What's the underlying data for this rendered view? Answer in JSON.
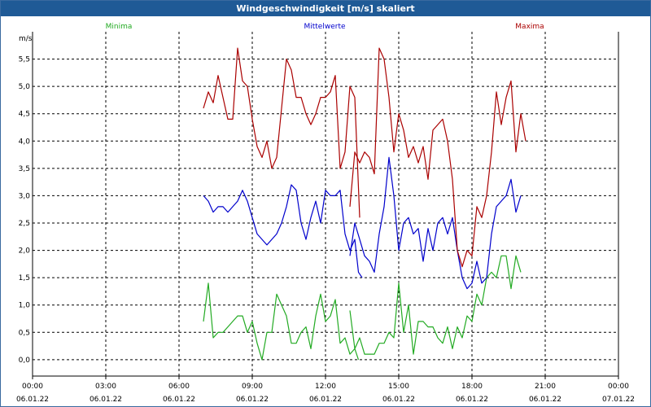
{
  "chart_data": {
    "type": "line",
    "title": "Windgeschwindigkeit [m/s] skaliert",
    "ylabel": "m/s",
    "xlabel": "",
    "ylim": [
      -0.3,
      6.0
    ],
    "xlim": [
      0,
      24
    ],
    "grid": true,
    "y_ticks": [
      "0,0",
      "0,5",
      "1,0",
      "1,5",
      "2,0",
      "2,5",
      "3,0",
      "3,5",
      "4,0",
      "4,5",
      "5,0",
      "5,5"
    ],
    "y_tick_values": [
      0,
      0.5,
      1.0,
      1.5,
      2.0,
      2.5,
      3.0,
      3.5,
      4.0,
      4.5,
      5.0,
      5.5
    ],
    "x_ticks": [
      {
        "time": "00:00",
        "date": "06.01.22",
        "hour": 0
      },
      {
        "time": "03:00",
        "date": "06.01.22",
        "hour": 3
      },
      {
        "time": "06:00",
        "date": "06.01.22",
        "hour": 6
      },
      {
        "time": "09:00",
        "date": "06.01.22",
        "hour": 9
      },
      {
        "time": "12:00",
        "date": "06.01.22",
        "hour": 12
      },
      {
        "time": "15:00",
        "date": "06.01.22",
        "hour": 15
      },
      {
        "time": "18:00",
        "date": "06.01.22",
        "hour": 18
      },
      {
        "time": "21:00",
        "date": "06.01.22",
        "hour": 21
      },
      {
        "time": "00:00",
        "date": "07.01.22",
        "hour": 24
      }
    ],
    "series": [
      {
        "name": "Minima",
        "color": "#22aa22",
        "legend_position": "top-left",
        "segments": [
          [
            [
              7.0,
              0.7
            ],
            [
              7.2,
              1.4
            ],
            [
              7.4,
              0.4
            ],
            [
              7.6,
              0.5
            ],
            [
              7.8,
              0.5
            ],
            [
              8.0,
              0.6
            ],
            [
              8.2,
              0.7
            ],
            [
              8.4,
              0.8
            ],
            [
              8.6,
              0.8
            ],
            [
              8.8,
              0.5
            ],
            [
              9.0,
              0.7
            ],
            [
              9.2,
              0.3
            ],
            [
              9.4,
              0.0
            ],
            [
              9.6,
              0.5
            ],
            [
              9.8,
              0.5
            ],
            [
              10.0,
              1.2
            ],
            [
              10.2,
              1.0
            ],
            [
              10.4,
              0.8
            ],
            [
              10.6,
              0.3
            ],
            [
              10.8,
              0.3
            ],
            [
              11.0,
              0.5
            ],
            [
              11.2,
              0.6
            ],
            [
              11.4,
              0.2
            ],
            [
              11.6,
              0.8
            ],
            [
              11.8,
              1.2
            ],
            [
              12.0,
              0.7
            ],
            [
              12.2,
              0.8
            ],
            [
              12.4,
              1.1
            ],
            [
              12.6,
              0.3
            ],
            [
              12.8,
              0.4
            ],
            [
              13.0,
              0.1
            ],
            [
              13.2,
              0.2
            ],
            [
              13.35,
              0.0
            ]
          ],
          [
            [
              13.0,
              0.9
            ],
            [
              13.2,
              0.2
            ],
            [
              13.4,
              0.4
            ],
            [
              13.6,
              0.1
            ],
            [
              13.8,
              0.1
            ],
            [
              14.0,
              0.1
            ],
            [
              14.2,
              0.3
            ],
            [
              14.4,
              0.3
            ],
            [
              14.6,
              0.5
            ],
            [
              14.8,
              0.4
            ],
            [
              15.0,
              1.4
            ],
            [
              15.2,
              0.5
            ],
            [
              15.4,
              1.0
            ],
            [
              15.6,
              0.1
            ],
            [
              15.8,
              0.7
            ],
            [
              16.0,
              0.7
            ],
            [
              16.2,
              0.6
            ],
            [
              16.4,
              0.6
            ],
            [
              16.6,
              0.4
            ],
            [
              16.8,
              0.3
            ],
            [
              17.0,
              0.6
            ],
            [
              17.2,
              0.2
            ],
            [
              17.4,
              0.6
            ],
            [
              17.6,
              0.4
            ],
            [
              17.8,
              0.8
            ],
            [
              18.0,
              0.7
            ],
            [
              18.2,
              1.2
            ],
            [
              18.4,
              1.0
            ],
            [
              18.6,
              1.5
            ],
            [
              18.8,
              1.6
            ],
            [
              19.0,
              1.5
            ],
            [
              19.2,
              1.9
            ],
            [
              19.4,
              1.9
            ],
            [
              19.6,
              1.3
            ],
            [
              19.8,
              1.9
            ],
            [
              20.0,
              1.6
            ]
          ]
        ]
      },
      {
        "name": "Mittelwerte",
        "color": "#0000cc",
        "legend_position": "top-center",
        "segments": [
          [
            [
              7.0,
              3.0
            ],
            [
              7.2,
              2.9
            ],
            [
              7.4,
              2.7
            ],
            [
              7.6,
              2.8
            ],
            [
              7.8,
              2.8
            ],
            [
              8.0,
              2.7
            ],
            [
              8.2,
              2.8
            ],
            [
              8.4,
              2.9
            ],
            [
              8.6,
              3.1
            ],
            [
              8.8,
              2.9
            ],
            [
              9.0,
              2.6
            ],
            [
              9.2,
              2.3
            ],
            [
              9.4,
              2.2
            ],
            [
              9.6,
              2.1
            ],
            [
              9.8,
              2.2
            ],
            [
              10.0,
              2.3
            ],
            [
              10.2,
              2.5
            ],
            [
              10.4,
              2.8
            ],
            [
              10.6,
              3.2
            ],
            [
              10.8,
              3.1
            ],
            [
              11.0,
              2.5
            ],
            [
              11.2,
              2.2
            ],
            [
              11.4,
              2.6
            ],
            [
              11.6,
              2.9
            ],
            [
              11.8,
              2.5
            ],
            [
              12.0,
              3.1
            ],
            [
              12.2,
              3.0
            ],
            [
              12.4,
              3.0
            ],
            [
              12.6,
              3.1
            ],
            [
              12.8,
              2.3
            ],
            [
              13.0,
              2.0
            ],
            [
              13.2,
              2.2
            ],
            [
              13.35,
              1.6
            ],
            [
              13.5,
              1.5
            ]
          ],
          [
            [
              13.0,
              1.9
            ],
            [
              13.2,
              2.5
            ],
            [
              13.4,
              2.2
            ],
            [
              13.6,
              1.9
            ],
            [
              13.8,
              1.8
            ],
            [
              14.0,
              1.6
            ],
            [
              14.2,
              2.3
            ],
            [
              14.4,
              2.8
            ],
            [
              14.6,
              3.7
            ],
            [
              14.8,
              3.0
            ],
            [
              15.0,
              2.0
            ],
            [
              15.2,
              2.5
            ],
            [
              15.4,
              2.6
            ],
            [
              15.6,
              2.3
            ],
            [
              15.8,
              2.4
            ],
            [
              16.0,
              1.8
            ],
            [
              16.2,
              2.4
            ],
            [
              16.4,
              2.0
            ],
            [
              16.6,
              2.5
            ],
            [
              16.8,
              2.6
            ],
            [
              17.0,
              2.3
            ],
            [
              17.2,
              2.6
            ],
            [
              17.4,
              2.0
            ],
            [
              17.6,
              1.5
            ],
            [
              17.8,
              1.3
            ],
            [
              18.0,
              1.4
            ],
            [
              18.2,
              1.8
            ],
            [
              18.4,
              1.4
            ],
            [
              18.6,
              1.5
            ],
            [
              18.8,
              2.3
            ],
            [
              19.0,
              2.8
            ],
            [
              19.2,
              2.9
            ],
            [
              19.4,
              3.0
            ],
            [
              19.6,
              3.3
            ],
            [
              19.8,
              2.7
            ],
            [
              20.0,
              3.0
            ]
          ]
        ]
      },
      {
        "name": "Maxima",
        "color": "#aa0000",
        "legend_position": "top-right",
        "segments": [
          [
            [
              7.0,
              4.6
            ],
            [
              7.2,
              4.9
            ],
            [
              7.4,
              4.7
            ],
            [
              7.6,
              5.2
            ],
            [
              7.8,
              4.8
            ],
            [
              8.0,
              4.4
            ],
            [
              8.2,
              4.4
            ],
            [
              8.4,
              5.7
            ],
            [
              8.6,
              5.1
            ],
            [
              8.8,
              5.0
            ],
            [
              9.0,
              4.4
            ],
            [
              9.2,
              3.9
            ],
            [
              9.4,
              3.7
            ],
            [
              9.6,
              4.0
            ],
            [
              9.8,
              3.5
            ],
            [
              10.0,
              3.7
            ],
            [
              10.2,
              4.6
            ],
            [
              10.4,
              5.5
            ],
            [
              10.6,
              5.3
            ],
            [
              10.8,
              4.8
            ],
            [
              11.0,
              4.8
            ],
            [
              11.2,
              4.5
            ],
            [
              11.4,
              4.3
            ],
            [
              11.6,
              4.5
            ],
            [
              11.8,
              4.8
            ],
            [
              12.0,
              4.8
            ],
            [
              12.2,
              4.9
            ],
            [
              12.4,
              5.2
            ],
            [
              12.6,
              3.5
            ],
            [
              12.8,
              3.8
            ],
            [
              13.0,
              5.0
            ],
            [
              13.2,
              4.8
            ],
            [
              13.4,
              2.6
            ]
          ],
          [
            [
              13.0,
              2.8
            ],
            [
              13.2,
              3.8
            ],
            [
              13.4,
              3.6
            ],
            [
              13.6,
              3.8
            ],
            [
              13.8,
              3.7
            ],
            [
              14.0,
              3.4
            ],
            [
              14.2,
              5.7
            ],
            [
              14.4,
              5.5
            ],
            [
              14.6,
              4.8
            ],
            [
              14.8,
              3.8
            ],
            [
              15.0,
              4.5
            ],
            [
              15.2,
              4.2
            ],
            [
              15.4,
              3.7
            ],
            [
              15.6,
              3.9
            ],
            [
              15.8,
              3.6
            ],
            [
              16.0,
              3.9
            ],
            [
              16.2,
              3.3
            ],
            [
              16.4,
              4.2
            ],
            [
              16.6,
              4.3
            ],
            [
              16.8,
              4.4
            ],
            [
              17.0,
              4.0
            ],
            [
              17.2,
              3.3
            ],
            [
              17.4,
              2.0
            ],
            [
              17.6,
              1.7
            ],
            [
              17.8,
              2.0
            ],
            [
              18.0,
              1.9
            ],
            [
              18.2,
              2.8
            ],
            [
              18.4,
              2.6
            ],
            [
              18.6,
              3.0
            ],
            [
              18.8,
              3.8
            ],
            [
              19.0,
              4.9
            ],
            [
              19.2,
              4.3
            ],
            [
              19.4,
              4.8
            ],
            [
              19.6,
              5.1
            ],
            [
              19.8,
              3.8
            ],
            [
              20.0,
              4.5
            ],
            [
              20.2,
              4.0
            ]
          ]
        ]
      }
    ]
  }
}
